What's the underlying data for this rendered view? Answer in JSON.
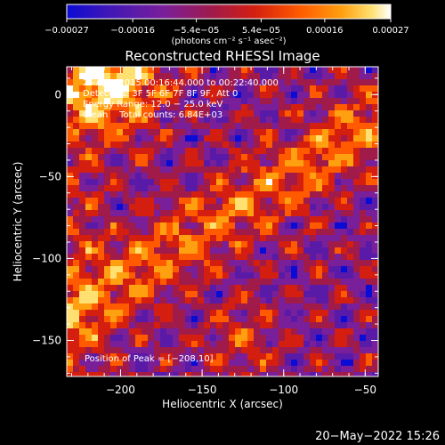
{
  "chart_data": {
    "type": "heatmap",
    "title": "Reconstructed RHESSI Image",
    "xlabel": "Heliocentric X (arcsec)",
    "ylabel": "Heliocentric Y (arcsec)",
    "xlim": [
      -233,
      -42
    ],
    "ylim": [
      -172,
      17
    ],
    "xticks": [
      -200,
      -150,
      -100,
      -50
    ],
    "xtick_labels": [
      "−200",
      "−150",
      "−100",
      "−50"
    ],
    "yticks": [
      0,
      -50,
      -100,
      -150
    ],
    "ytick_labels": [
      "0",
      "−50",
      "−100",
      "−150"
    ],
    "colorbar": {
      "range": [
        -0.00027,
        0.00027
      ],
      "ticks": [
        -0.00027,
        -0.00016,
        -5.4e-05,
        5.4e-05,
        0.00016,
        0.00027
      ],
      "tick_labels": [
        "−0.00027",
        "−0.00016",
        "−5.4e−05",
        "5.4e−05",
        "0.00016",
        "0.00027"
      ],
      "unit_label": "(photons cm⁻² s⁻¹ asec⁻²)",
      "colors": [
        "#0b0bd6",
        "#5a1aa8",
        "#7a1f9a",
        "#a01a4a",
        "#d41f10",
        "#ff5a00",
        "#ffa010",
        "#ffe070",
        "#ffffff"
      ]
    },
    "annotations": [
      "2−Apr−2015 00:16:44.000 to 00:22:40.000",
      "Detectors: 3F 5F 6F 7F 8F 9F, Att 0",
      "Energy Range: 12.0 − 25.0 keV",
      "Clean    Total counts: 6.84E+03"
    ],
    "peak_label": "Position of Peak = [−208,10]",
    "peak": [
      -208,
      10
    ]
  },
  "footer": {
    "timestamp": "20−May−2022 15:26"
  }
}
